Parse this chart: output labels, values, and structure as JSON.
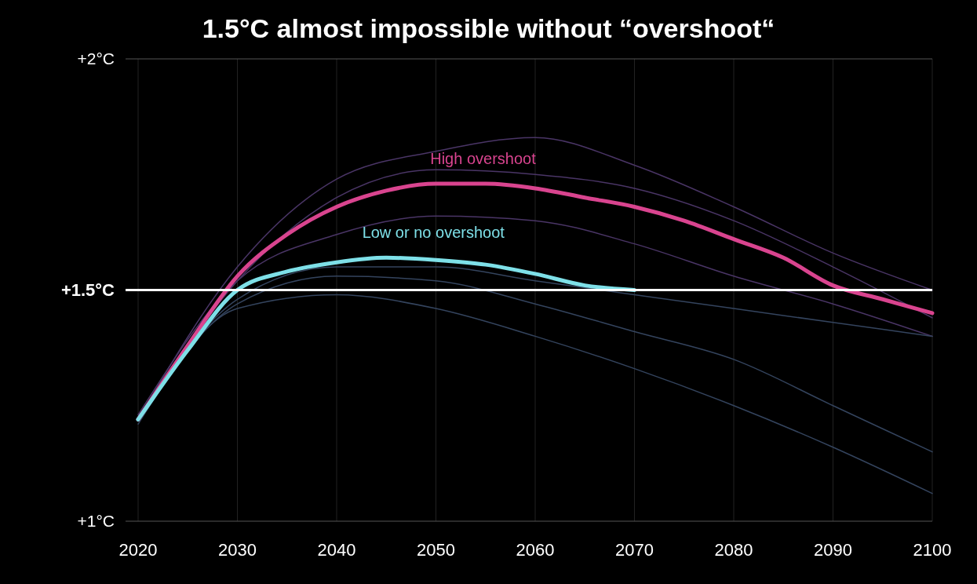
{
  "chart_data": {
    "type": "line",
    "title": "1.5°C almost impossible without “overshoot“",
    "xlim": [
      2020,
      2100
    ],
    "xticks": [
      2020,
      2030,
      2040,
      2050,
      2060,
      2070,
      2080,
      2090,
      2100
    ],
    "ylim": [
      1,
      2
    ],
    "yticks": [
      {
        "value": 1,
        "label": "+1°C"
      },
      {
        "value": 1.5,
        "label": "+1.5°C"
      },
      {
        "value": 2,
        "label": "+2°C"
      }
    ],
    "grid": true,
    "ref_lines": [
      {
        "axis": "y",
        "value": 1.5,
        "color": "#ffffff"
      }
    ],
    "series": [
      {
        "color": "#4a3566",
        "x": [
          2020,
          2030,
          2040,
          2050,
          2060,
          2070,
          2080,
          2090,
          2100
        ],
        "values": [
          1.22,
          1.55,
          1.74,
          1.8,
          1.83,
          1.77,
          1.68,
          1.58,
          1.5
        ]
      },
      {
        "color": "#4a3566",
        "x": [
          2020,
          2030,
          2040,
          2050,
          2060,
          2070,
          2080,
          2090,
          2100
        ],
        "values": [
          1.23,
          1.52,
          1.62,
          1.66,
          1.65,
          1.6,
          1.53,
          1.47,
          1.4
        ]
      },
      {
        "color": "#4a3566",
        "x": [
          2020,
          2030,
          2040,
          2050,
          2060,
          2070,
          2080,
          2090,
          2100
        ],
        "values": [
          1.22,
          1.52,
          1.7,
          1.76,
          1.75,
          1.72,
          1.65,
          1.55,
          1.44
        ]
      },
      {
        "color": "#34445e",
        "x": [
          2020,
          2030,
          2040,
          2050,
          2060,
          2070,
          2080,
          2090,
          2100
        ],
        "values": [
          1.22,
          1.48,
          1.55,
          1.55,
          1.52,
          1.49,
          1.46,
          1.43,
          1.4
        ]
      },
      {
        "color": "#34445e",
        "x": [
          2020,
          2030,
          2040,
          2050,
          2060,
          2070,
          2080,
          2090,
          2100
        ],
        "values": [
          1.21,
          1.46,
          1.49,
          1.46,
          1.4,
          1.33,
          1.25,
          1.16,
          1.06
        ]
      },
      {
        "color": "#34445e",
        "x": [
          2020,
          2030,
          2040,
          2050,
          2060,
          2070,
          2080,
          2090,
          2100
        ],
        "values": [
          1.22,
          1.47,
          1.53,
          1.52,
          1.47,
          1.41,
          1.35,
          1.25,
          1.15
        ]
      },
      {
        "name": "High overshoot",
        "color": "#d9448f",
        "x": [
          2020,
          2025,
          2030,
          2035,
          2040,
          2045,
          2050,
          2055,
          2060,
          2065,
          2070,
          2075,
          2080,
          2085,
          2090,
          2095,
          2100
        ],
        "values": [
          1.22,
          1.38,
          1.53,
          1.62,
          1.68,
          1.715,
          1.73,
          1.73,
          1.72,
          1.7,
          1.68,
          1.65,
          1.61,
          1.57,
          1.51,
          1.48,
          1.45
        ]
      },
      {
        "name": "Low or no overshoot",
        "color": "#7ee0e8",
        "x": [
          2020,
          2025,
          2030,
          2035,
          2040,
          2045,
          2050,
          2055,
          2060,
          2065,
          2070
        ],
        "values": [
          1.22,
          1.37,
          1.5,
          1.54,
          1.56,
          1.57,
          1.565,
          1.555,
          1.535,
          1.51,
          1.5
        ]
      }
    ]
  }
}
